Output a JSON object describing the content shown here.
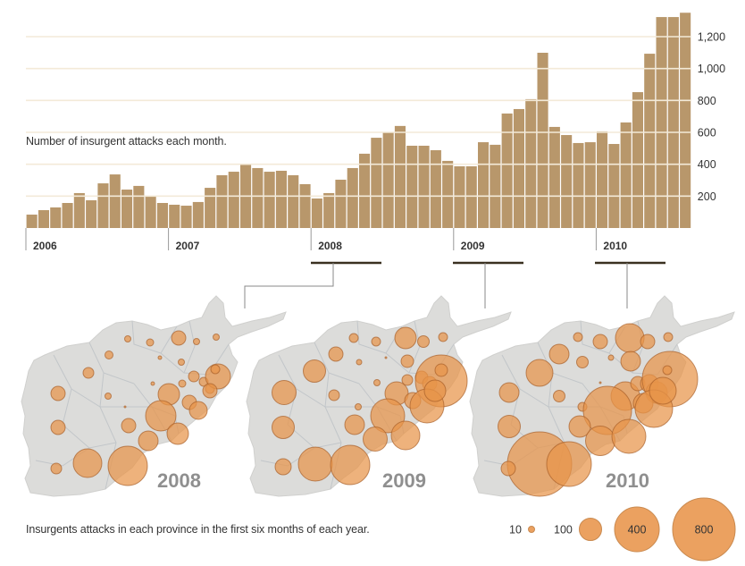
{
  "chart_data": [
    {
      "type": "bar",
      "title": "Number of insurgent attacks each month.",
      "xlabel": "",
      "ylabel": "",
      "ylim": [
        0,
        1400
      ],
      "y_ticks": [
        200,
        400,
        600,
        800,
        1000,
        1200
      ],
      "y_tick_labels": [
        "200",
        "400",
        "600",
        "800",
        "1,000",
        "1,200"
      ],
      "y_axis_position": "right",
      "grid": true,
      "year_labels": [
        "2006",
        "2007",
        "2008",
        "2009",
        "2010"
      ],
      "bar_color": "#b8976b",
      "series": [
        {
          "name": "2006",
          "values": [
            84,
            112,
            129,
            157,
            219,
            174,
            280,
            336,
            241,
            264,
            202,
            157
          ]
        },
        {
          "name": "2007",
          "values": [
            146,
            140,
            163,
            252,
            331,
            353,
            398,
            376,
            353,
            359,
            331,
            275
          ]
        },
        {
          "name": "2008",
          "values": [
            185,
            219,
            303,
            376,
            466,
            566,
            600,
            640,
            516,
            516,
            488,
            421
          ]
        },
        {
          "name": "2009",
          "values": [
            387,
            387,
            538,
            522,
            718,
            746,
            808,
            1099,
            634,
            583,
            533,
            538
          ]
        },
        {
          "name": "2010",
          "values": [
            606,
            527,
            662,
            852,
            1093,
            1323,
            1323,
            1350
          ]
        }
      ],
      "highlight_periods": [
        "2008 Jan-Jun",
        "2009 Jan-Jun",
        "2010 Jan-Jun"
      ]
    },
    {
      "type": "scatter",
      "title": "Insurgents attacks in each province in the first six months of each year.",
      "maps": [
        {
          "year": "2008"
        },
        {
          "year": "2009"
        },
        {
          "year": "2010"
        }
      ],
      "legend": {
        "placement": "bottom-right",
        "entries": [
          {
            "label": "10",
            "value": 10
          },
          {
            "label": "100",
            "value": 100
          },
          {
            "label": "400",
            "value": 400
          },
          {
            "label": "800",
            "value": 800
          }
        ]
      },
      "bubble_color": "#e8944a",
      "map_color": "#dcdcda"
    }
  ]
}
